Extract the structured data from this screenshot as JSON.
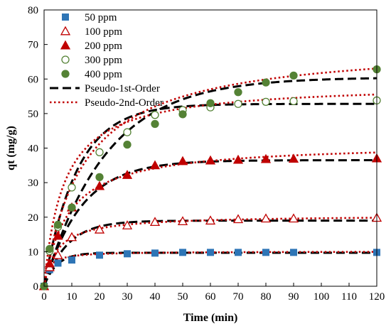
{
  "chart_data": {
    "type": "scatter",
    "xlabel": "Time (min)",
    "ylabel": "qt (mg/g)",
    "xlim": [
      0,
      120
    ],
    "ylim": [
      0,
      80
    ],
    "x_ticks": [
      0,
      10,
      20,
      30,
      40,
      50,
      60,
      70,
      80,
      90,
      100,
      110,
      120
    ],
    "y_ticks": [
      0,
      10,
      20,
      30,
      40,
      50,
      60,
      70,
      80
    ],
    "grid": false,
    "legend_position": "top-left",
    "series": [
      {
        "name": "50 ppm",
        "marker": "square",
        "color": "#2e75b6",
        "x": [
          0,
          2,
          5,
          10,
          20,
          30,
          40,
          50,
          60,
          70,
          80,
          90,
          120
        ],
        "y": [
          0,
          4.8,
          6.7,
          7.6,
          9.0,
          9.4,
          9.6,
          9.8,
          9.8,
          9.8,
          9.8,
          9.8,
          9.8
        ]
      },
      {
        "name": "100 ppm",
        "marker": "triangle-open",
        "color": "#c00000",
        "x": [
          0,
          2,
          5,
          10,
          20,
          30,
          40,
          50,
          60,
          70,
          80,
          90,
          120
        ],
        "y": [
          0,
          5.5,
          9.0,
          14.2,
          16.4,
          17.6,
          18.6,
          18.8,
          19.0,
          19.4,
          19.6,
          19.6,
          19.8
        ]
      },
      {
        "name": "200 ppm",
        "marker": "triangle-filled",
        "color": "#c00000",
        "x": [
          0,
          2,
          5,
          10,
          20,
          30,
          40,
          50,
          60,
          70,
          80,
          90,
          120
        ],
        "y": [
          0,
          6.6,
          14.6,
          22.8,
          29.0,
          32.2,
          35.0,
          36.2,
          36.4,
          36.6,
          36.8,
          36.9,
          37.0
        ]
      },
      {
        "name": "300 ppm",
        "marker": "circle-open",
        "color": "#548235",
        "x": [
          0,
          2,
          5,
          10,
          20,
          30,
          40,
          50,
          60,
          70,
          80,
          90,
          120
        ],
        "y": [
          0,
          10.2,
          17.2,
          28.6,
          38.8,
          44.6,
          49.6,
          51.0,
          51.8,
          52.8,
          53.4,
          53.6,
          53.8
        ]
      },
      {
        "name": "400 ppm",
        "marker": "circle-filled",
        "color": "#548235",
        "x": [
          0,
          2,
          5,
          10,
          20,
          30,
          40,
          50,
          60,
          70,
          80,
          90,
          120
        ],
        "y": [
          0,
          10.8,
          17.8,
          22.8,
          31.6,
          41.0,
          47.0,
          49.8,
          53.0,
          56.2,
          59.0,
          61.0,
          62.8
        ]
      }
    ],
    "model_series": [
      {
        "name": "Pseudo-1st-Order",
        "style": "dashed",
        "color": "#000000",
        "curves": [
          {
            "qe": 9.7,
            "k": 0.22
          },
          {
            "qe": 19.0,
            "k": 0.12
          },
          {
            "qe": 36.5,
            "k": 0.075
          },
          {
            "qe": 52.8,
            "k": 0.085
          },
          {
            "qe": 60.5,
            "k": 0.045
          }
        ]
      },
      {
        "name": "Pseudo-2nd-Order",
        "style": "dotted",
        "color": "#c00000",
        "curves": [
          {
            "qe": 10.1,
            "k": 0.06
          },
          {
            "qe": 20.6,
            "k": 0.0105
          },
          {
            "qe": 41.5,
            "k": 0.0028
          },
          {
            "qe": 58.8,
            "k": 0.0024
          },
          {
            "qe": 70.5,
            "k": 0.001
          }
        ]
      }
    ]
  }
}
